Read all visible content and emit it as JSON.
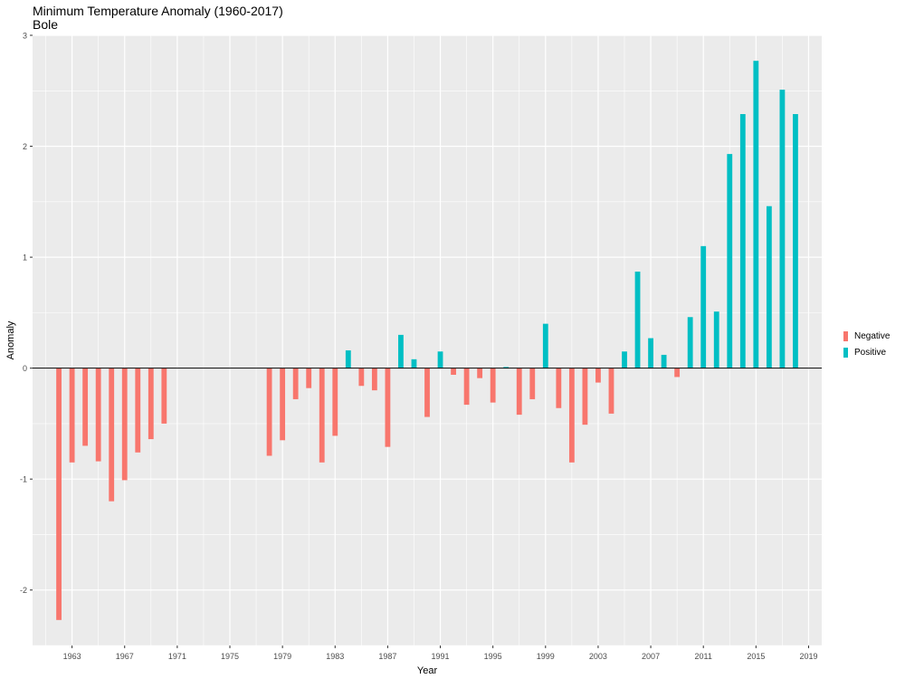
{
  "chart_data": {
    "type": "bar",
    "title": "Minimum Temperature Anomaly (1960-2017)",
    "subtitle": "Bole",
    "xlabel": "Year",
    "ylabel": "Anomaly",
    "xlim": [
      1960,
      2020
    ],
    "ylim": [
      -2.5,
      3
    ],
    "x_ticks": [
      "1963",
      "1967",
      "1971",
      "1975",
      "1979",
      "1983",
      "1987",
      "1991",
      "1995",
      "1999",
      "2003",
      "2007",
      "2011",
      "2015",
      "2019"
    ],
    "y_ticks": [
      "-2",
      "-1",
      "0",
      "1",
      "2",
      "3"
    ],
    "legend": [
      "Negative",
      "Positive"
    ],
    "colors": {
      "Negative": "#f8766d",
      "Positive": "#00bfc4",
      "panel": "#ebebeb",
      "grid": "#ffffff"
    },
    "x": [
      1962,
      1963,
      1964,
      1965,
      1966,
      1967,
      1968,
      1969,
      1970,
      1978,
      1979,
      1980,
      1981,
      1982,
      1983,
      1984,
      1985,
      1986,
      1987,
      1988,
      1989,
      1990,
      1991,
      1992,
      1993,
      1994,
      1995,
      1996,
      1997,
      1998,
      1999,
      2000,
      2001,
      2002,
      2003,
      2004,
      2005,
      2006,
      2007,
      2008,
      2009,
      2010,
      2011,
      2012,
      2013,
      2014,
      2015,
      2016,
      2017,
      2018
    ],
    "values": [
      -2.27,
      -0.85,
      -0.7,
      -0.84,
      -1.2,
      -1.01,
      -0.76,
      -0.64,
      -0.5,
      -0.79,
      -0.65,
      -0.28,
      -0.18,
      -0.85,
      -0.61,
      0.16,
      -0.16,
      -0.2,
      -0.71,
      0.3,
      0.08,
      -0.44,
      0.15,
      -0.06,
      -0.33,
      -0.09,
      -0.31,
      0.01,
      -0.42,
      -0.28,
      0.4,
      -0.36,
      -0.85,
      -0.51,
      -0.13,
      -0.41,
      0.15,
      0.87,
      0.27,
      0.12,
      -0.08,
      0.46,
      1.1,
      0.51,
      1.93,
      2.29,
      2.77,
      1.46,
      2.51,
      2.29
    ]
  }
}
